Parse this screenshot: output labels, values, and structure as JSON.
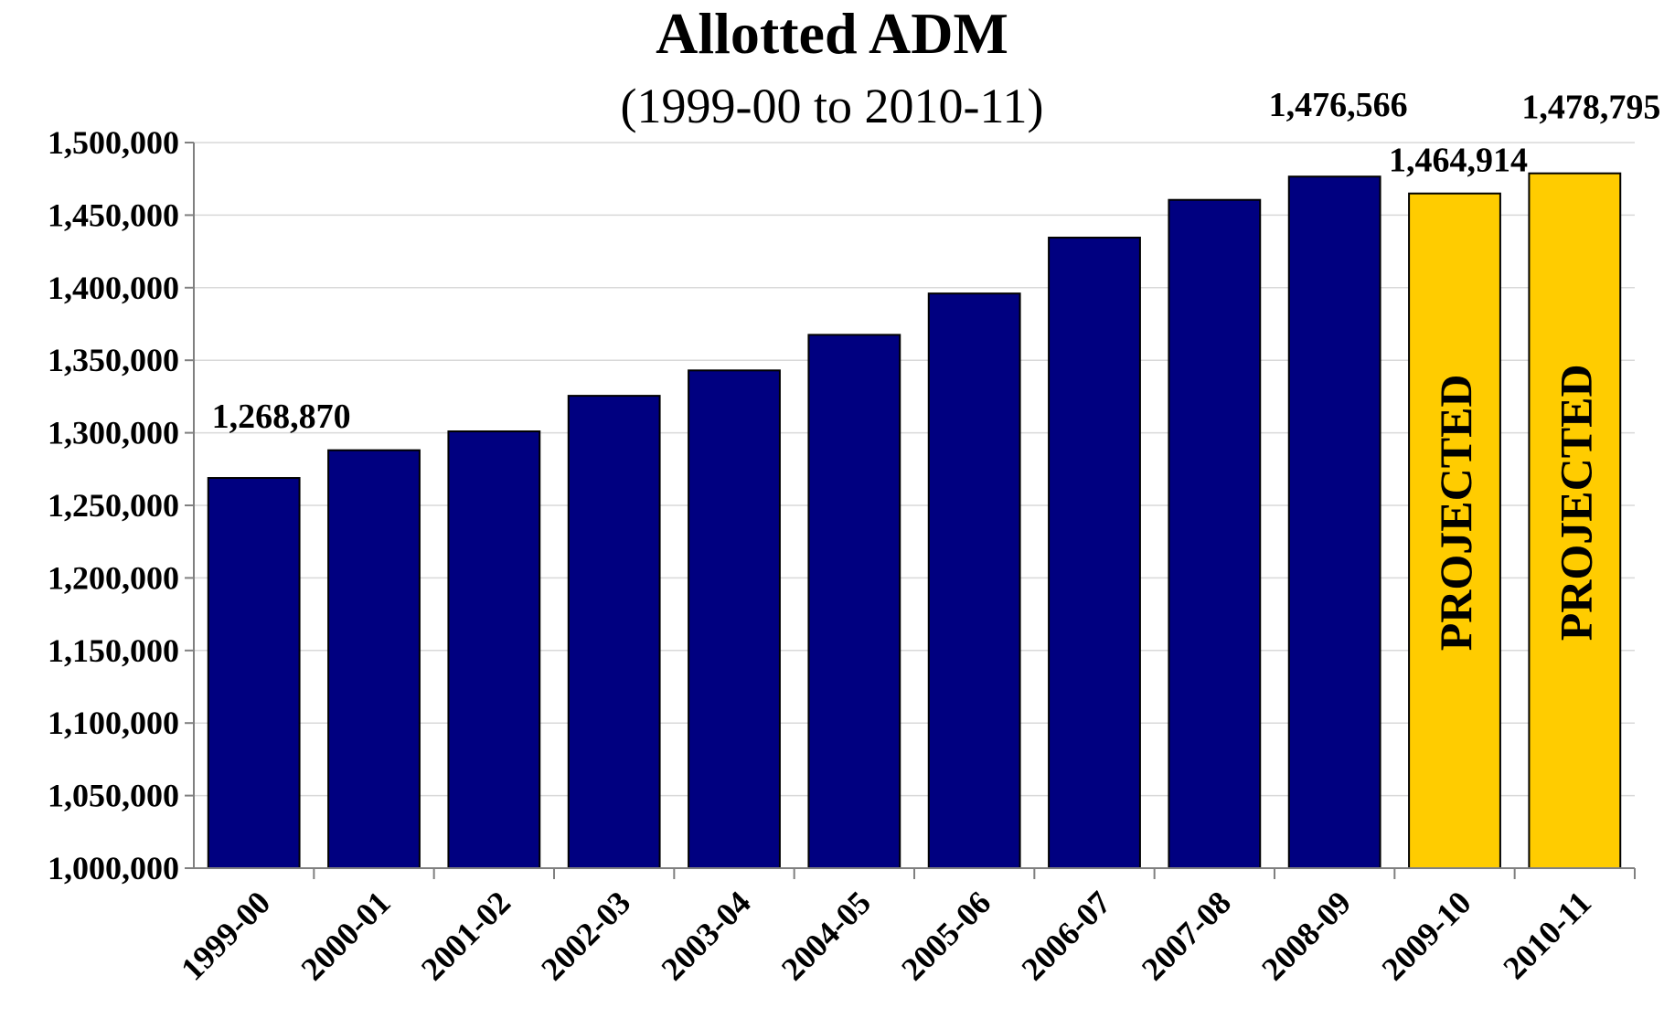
{
  "chart_data": {
    "type": "bar",
    "title": "Allotted ADM",
    "subtitle": "(1999-00 to 2010-11)",
    "categories": [
      "1999-00",
      "2000-01",
      "2001-02",
      "2002-03",
      "2003-04",
      "2004-05",
      "2005-06",
      "2006-07",
      "2007-08",
      "2008-09",
      "2009-10",
      "2010-11"
    ],
    "values": [
      1268870,
      1288000,
      1301000,
      1325500,
      1343000,
      1367500,
      1396000,
      1434500,
      1460500,
      1476566,
      1464914,
      1478795
    ],
    "projected": [
      false,
      false,
      false,
      false,
      false,
      false,
      false,
      false,
      false,
      false,
      true,
      true
    ],
    "projected_label": "PROJECTED",
    "data_labels": [
      {
        "index": 0,
        "text": "1,268,870"
      },
      {
        "index": 9,
        "text": "1,476,566"
      },
      {
        "index": 10,
        "text": "1,464,914"
      },
      {
        "index": 11,
        "text": "1,478,795"
      }
    ],
    "ylim": [
      1000000,
      1500000
    ],
    "yticks": [
      "1,000,000",
      "1,050,000",
      "1,100,000",
      "1,150,000",
      "1,200,000",
      "1,250,000",
      "1,300,000",
      "1,350,000",
      "1,400,000",
      "1,450,000",
      "1,500,000"
    ],
    "xlabel": "",
    "ylabel": "",
    "grid": true,
    "colors": {
      "actual": "#000080",
      "projected": "#FFCC00",
      "grid": "#d9d9d9",
      "axis": "#808080"
    }
  }
}
